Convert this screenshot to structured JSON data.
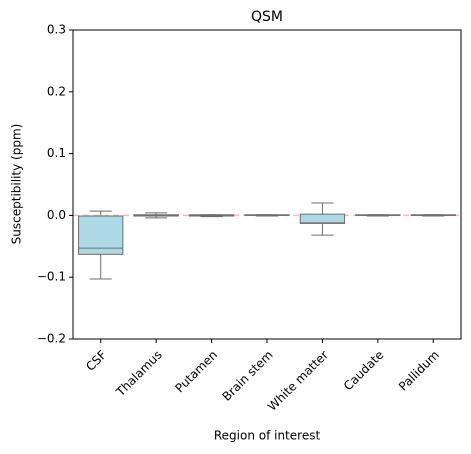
{
  "chart_data": {
    "type": "box",
    "title": "QSM",
    "x_label": "Region of interest",
    "y_label": "Susceptibility (ppm)",
    "categories": [
      "CSF",
      "Thalamus",
      "Putamen",
      "Brain stem",
      "White matter",
      "Caudate",
      "Pallidum"
    ],
    "boxes": [
      {
        "whislo": -0.103,
        "q1": -0.063,
        "med": -0.053,
        "q3": -0.001,
        "whishi": 0.007
      },
      {
        "whislo": -0.004,
        "q1": -0.001,
        "med": 0,
        "q3": 0.001,
        "whishi": 0.004
      },
      {
        "whislo": -0.002,
        "q1": -0.001,
        "med": 0,
        "q3": 0.001,
        "whishi": 0.001
      },
      {
        "whislo": -0.001,
        "q1": 0,
        "med": 0,
        "q3": 0.001,
        "whishi": 0.001
      },
      {
        "whislo": -0.032,
        "q1": -0.013,
        "med": -0.012,
        "q3": 0.002,
        "whishi": 0.02
      },
      {
        "whislo": -0.001,
        "q1": 0,
        "med": 0,
        "q3": 0.001,
        "whishi": 0.001
      },
      {
        "whislo": -0.001,
        "q1": 0,
        "med": 0,
        "q3": 0.001,
        "whishi": 0.001
      }
    ],
    "color": "#add8e6",
    "line_color": "#6e6e6e",
    "reference_line": {
      "value": 0,
      "color": "#ffb6c1"
    },
    "ylim": [
      -0.2,
      0.3
    ],
    "yticks": [
      {
        "value": -0.2,
        "label": "−0.2"
      },
      {
        "value": -0.1,
        "label": "−0.1"
      },
      {
        "value": 0,
        "label": "0.0"
      },
      0.1,
      0.2,
      0.3
    ]
  }
}
